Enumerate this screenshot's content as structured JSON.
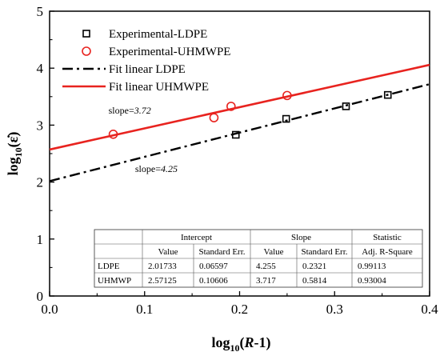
{
  "chart_data": {
    "type": "scatter",
    "title": "",
    "xlabel": {
      "main": "log",
      "sub": "10",
      "suffix_open": "(",
      "italic": "R",
      "suffix_close": "-1)"
    },
    "ylabel": {
      "main": "log",
      "sub": "10",
      "suffix": "(ε̇)"
    },
    "xlim": [
      0.0,
      0.4
    ],
    "ylim": [
      0,
      5
    ],
    "xticks": [
      "0.0",
      "0.1",
      "0.2",
      "0.3",
      "0.4"
    ],
    "yticks": [
      "0",
      "1",
      "2",
      "3",
      "4",
      "5"
    ],
    "grid": false,
    "legend_position": "top-left",
    "series": [
      {
        "name": "Experimental-LDPE",
        "kind": "points",
        "marker": "square",
        "color": "#000000",
        "x": [
          0.196,
          0.249,
          0.312,
          0.356
        ],
        "y": [
          2.83,
          3.11,
          3.33,
          3.53
        ]
      },
      {
        "name": "Experimental-UHMWPE",
        "kind": "points",
        "marker": "circle",
        "color": "#e8231f",
        "x": [
          0.067,
          0.173,
          0.191,
          0.25
        ],
        "y": [
          2.84,
          3.13,
          3.33,
          3.52
        ]
      },
      {
        "name": "Fit linear LDPE",
        "kind": "line",
        "style": "dashdot",
        "color": "#000000",
        "intercept": 2.01733,
        "slope": 4.255
      },
      {
        "name": "Fit linear UHMWPE",
        "kind": "line",
        "style": "solid",
        "color": "#e8231f",
        "intercept": 2.57125,
        "slope": 3.717
      }
    ],
    "annotations": [
      {
        "prefix": "slope=",
        "value": "3.72",
        "x": 0.062,
        "y": 3.2
      },
      {
        "prefix": "slope=",
        "value": "4.25",
        "x": 0.09,
        "y": 2.18
      }
    ],
    "table": {
      "groups": [
        "Intercept",
        "Slope",
        "Statistic"
      ],
      "subheaders": [
        "Value",
        "Standard Err.",
        "Value",
        "Standard Err.",
        "Adj. R-Square"
      ],
      "rows": [
        {
          "label": "LDPE",
          "cells": [
            "2.01733",
            "0.06597",
            "4.255",
            "0.2321",
            "0.99113"
          ]
        },
        {
          "label": "UHMWP",
          "cells": [
            "2.57125",
            "0.10606",
            "3.717",
            "0.5814",
            "0.93004"
          ]
        }
      ]
    }
  }
}
